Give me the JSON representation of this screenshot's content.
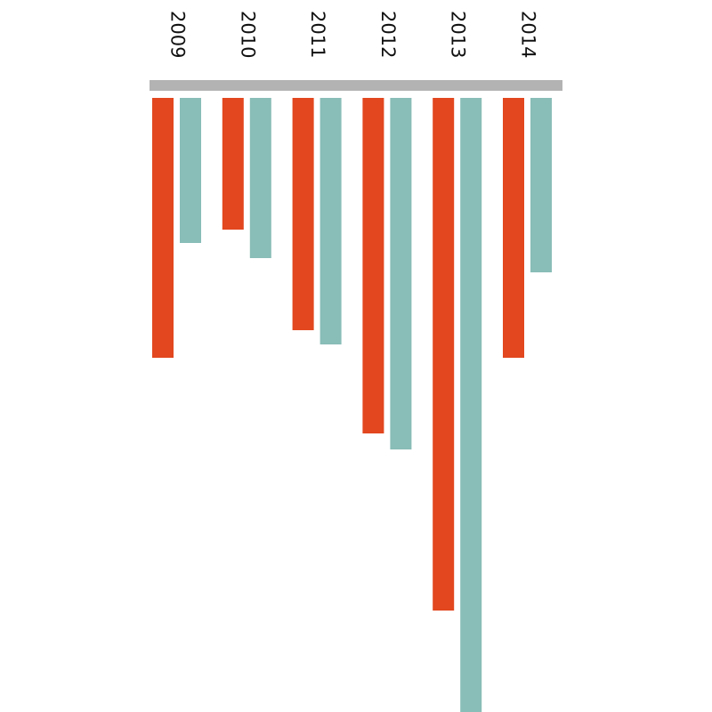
{
  "chart_data": {
    "type": "bar",
    "categories": [
      "2009",
      "2010",
      "2011",
      "2012",
      "2013",
      "2014"
    ],
    "series": [
      {
        "color": "#e2471f",
        "values": [
          292,
          148,
          261,
          377,
          576,
          292
        ]
      },
      {
        "color": "#89bdb7",
        "values": [
          163,
          180,
          277,
          395,
          690,
          196
        ]
      }
    ],
    "ylim": [
      0,
      690
    ]
  }
}
